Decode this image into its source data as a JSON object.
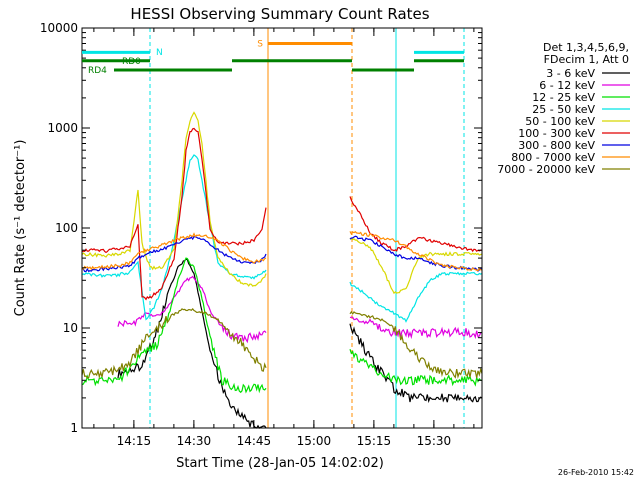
{
  "chart_data": {
    "type": "line",
    "title": "HESSI Observing Summary Count Rates",
    "xlabel": "Start Time (28-Jan-05 14:02:02)",
    "ylabel": "Count Rate (s⁻¹ detector⁻¹)",
    "x_ticks": [
      "14:15",
      "14:30",
      "14:45",
      "15:00",
      "15:15",
      "15:30"
    ],
    "x_range_minutes": [
      0,
      100
    ],
    "y_scale": "log",
    "ylim": [
      1,
      10000
    ],
    "y_ticks": [
      "1",
      "10",
      "100",
      "1000",
      "10000"
    ],
    "footer": "26-Feb-2010 15:42",
    "legend": {
      "position": "right",
      "header": [
        "Det 1,3,4,5,6,9,",
        "FDecim 1, Att 0"
      ],
      "entries": [
        {
          "label": "3 - 6 keV",
          "color": "#000000"
        },
        {
          "label": "6 - 12 keV",
          "color": "#e000e0"
        },
        {
          "label": "12 - 25 keV",
          "color": "#00e000"
        },
        {
          "label": "25 - 50 keV",
          "color": "#00e5e5"
        },
        {
          "label": "50 - 100 keV",
          "color": "#d8d800"
        },
        {
          "label": "100 - 300 keV",
          "color": "#e00000"
        },
        {
          "label": "300 - 800 keV",
          "color": "#0000e0"
        },
        {
          "label": "800 - 7000 keV",
          "color": "#ff8c00"
        },
        {
          "label": "7000 - 20000 keV",
          "color": "#808000"
        }
      ]
    },
    "flag_labels": {
      "n": "N",
      "s": "S",
      "rd0": "RD0",
      "rd4": "RD4"
    },
    "data_gap_minutes": [
      46,
      67
    ],
    "series": [
      {
        "name": "3 - 6 keV",
        "color": "#000000",
        "x": [
          9,
          12,
          14,
          16,
          19,
          22,
          24,
          26,
          28,
          30,
          32,
          35,
          38,
          41,
          44,
          46,
          67,
          69,
          72,
          75,
          78,
          82,
          86,
          90,
          94,
          97,
          100
        ],
        "y": [
          3.5,
          3.8,
          4,
          5,
          10,
          25,
          40,
          50,
          35,
          15,
          6,
          2.5,
          1.5,
          1.2,
          1,
          1,
          10,
          8,
          5,
          3.5,
          2.5,
          2,
          2,
          2,
          2,
          2,
          2
        ]
      },
      {
        "name": "6 - 12 keV",
        "color": "#e000e0",
        "x": [
          9,
          12,
          14,
          16,
          18,
          20,
          23,
          26,
          28,
          30,
          32,
          35,
          38,
          41,
          44,
          46,
          67,
          69,
          72,
          75,
          78,
          82,
          86,
          90,
          94,
          97,
          100
        ],
        "y": [
          11,
          11,
          12,
          14,
          13,
          14,
          20,
          30,
          32,
          25,
          15,
          10,
          8,
          8,
          8,
          9,
          13,
          12,
          11,
          10,
          9,
          9,
          9,
          9,
          9,
          9,
          9
        ]
      },
      {
        "name": "12 - 25 keV",
        "color": "#00e000",
        "x": [
          0,
          3,
          6,
          9,
          12,
          14,
          16,
          19,
          22,
          24,
          26,
          28,
          30,
          32,
          35,
          38,
          41,
          44,
          46,
          67,
          69,
          72,
          75,
          78,
          82,
          86,
          90,
          94,
          97,
          100
        ],
        "y": [
          3,
          3,
          3,
          3,
          4,
          5,
          6,
          7,
          15,
          30,
          50,
          40,
          20,
          8,
          3,
          2.5,
          2.5,
          2.5,
          2.5,
          6,
          5,
          4,
          3.5,
          3,
          3,
          3,
          3,
          3,
          3,
          3
        ]
      },
      {
        "name": "25 - 50 keV",
        "color": "#00e5e5",
        "x": [
          0,
          3,
          6,
          9,
          12,
          14,
          16,
          18,
          20,
          22,
          24,
          26,
          27,
          28,
          29,
          30,
          32,
          34,
          37,
          40,
          43,
          45,
          46,
          67,
          69,
          72,
          75,
          78,
          81,
          84,
          87,
          90,
          94,
          97,
          100
        ],
        "y": [
          35,
          34,
          33,
          34,
          36,
          45,
          12,
          16,
          25,
          50,
          120,
          300,
          480,
          540,
          480,
          300,
          110,
          45,
          35,
          33,
          32,
          35,
          38,
          28,
          25,
          20,
          16,
          14,
          12,
          20,
          30,
          35,
          35,
          35,
          35
        ]
      },
      {
        "name": "50 - 100 keV",
        "color": "#d8d800",
        "x": [
          0,
          3,
          6,
          9,
          12,
          14,
          15,
          17,
          20,
          23,
          25,
          26,
          27,
          28,
          29,
          30,
          32,
          34,
          37,
          40,
          43,
          45,
          46,
          67,
          69,
          72,
          75,
          78,
          81,
          84,
          87,
          90,
          94,
          97,
          100
        ],
        "y": [
          55,
          54,
          53,
          55,
          60,
          240,
          70,
          40,
          40,
          60,
          300,
          800,
          1200,
          1400,
          1200,
          700,
          120,
          50,
          35,
          28,
          26,
          30,
          35,
          80,
          75,
          65,
          40,
          22,
          25,
          50,
          55,
          55,
          55,
          55,
          55
        ]
      },
      {
        "name": "100 - 300 keV",
        "color": "#e00000",
        "x": [
          0,
          3,
          6,
          9,
          12,
          14,
          15,
          17,
          20,
          23,
          25,
          26,
          27,
          28,
          29,
          30,
          32,
          34,
          37,
          40,
          43,
          45,
          46,
          67,
          69,
          72,
          75,
          78,
          81,
          84,
          87,
          90,
          94,
          97,
          100
        ],
        "y": [
          60,
          60,
          59,
          62,
          65,
          110,
          20,
          20,
          25,
          50,
          200,
          600,
          900,
          1000,
          900,
          500,
          100,
          70,
          70,
          70,
          75,
          100,
          160,
          200,
          150,
          90,
          70,
          60,
          65,
          80,
          75,
          70,
          65,
          60,
          60
        ]
      },
      {
        "name": "300 - 800 keV",
        "color": "#0000e0",
        "x": [
          0,
          3,
          6,
          9,
          12,
          14,
          16,
          19,
          22,
          25,
          28,
          31,
          34,
          37,
          40,
          43,
          45,
          46,
          67,
          69,
          72,
          75,
          78,
          81,
          84,
          87,
          90,
          94,
          97,
          100
        ],
        "y": [
          38,
          38,
          39,
          40,
          42,
          50,
          55,
          60,
          65,
          75,
          80,
          75,
          60,
          50,
          45,
          45,
          48,
          55,
          80,
          80,
          75,
          65,
          55,
          50,
          50,
          45,
          42,
          40,
          39,
          38
        ]
      },
      {
        "name": "800 - 7000 keV",
        "color": "#ff8c00",
        "x": [
          0,
          3,
          6,
          9,
          12,
          14,
          16,
          19,
          22,
          25,
          28,
          31,
          34,
          37,
          40,
          43,
          45,
          46,
          67,
          69,
          72,
          75,
          78,
          81,
          84,
          87,
          90,
          94,
          97,
          100
        ],
        "y": [
          40,
          40,
          41,
          42,
          45,
          55,
          60,
          65,
          72,
          80,
          85,
          82,
          75,
          60,
          50,
          46,
          48,
          50,
          90,
          88,
          85,
          80,
          75,
          65,
          55,
          48,
          42,
          40,
          39,
          38
        ]
      },
      {
        "name": "7000 - 20000 keV",
        "color": "#808000",
        "x": [
          0,
          3,
          6,
          9,
          12,
          14,
          16,
          19,
          22,
          25,
          28,
          31,
          34,
          37,
          40,
          43,
          45,
          46,
          67,
          69,
          72,
          75,
          78,
          81,
          84,
          87,
          90,
          94,
          97,
          100
        ],
        "y": [
          3.5,
          3.5,
          3.6,
          3.8,
          4.5,
          6,
          8,
          10,
          13,
          15,
          15,
          14,
          12,
          9,
          7,
          5,
          4,
          4,
          14,
          14,
          13,
          12,
          10,
          7,
          5,
          4,
          3.5,
          3.5,
          3.5,
          3.5
        ]
      }
    ]
  }
}
